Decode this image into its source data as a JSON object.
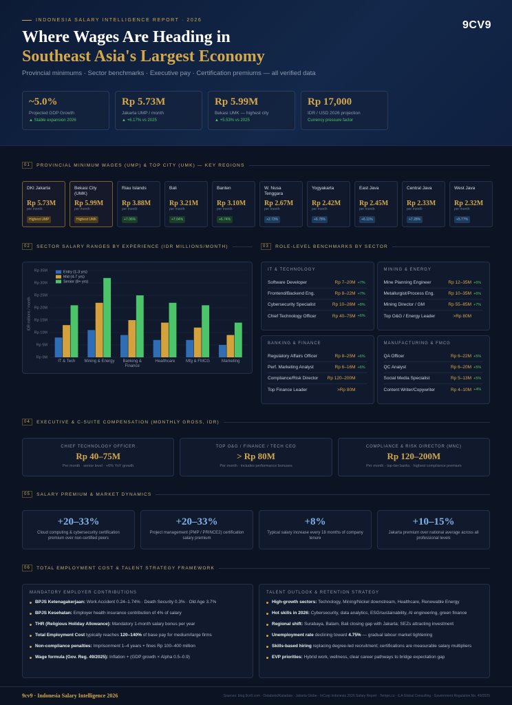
{
  "header": {
    "kicker": "INDONESIA SALARY INTELLIGENCE REPORT · 2026",
    "title_line1": "Where Wages Are Heading in",
    "title_line2": "Southeast Asia's Largest Economy",
    "subtitle": "Provincial minimums · Sector benchmarks · Executive pay · Certification premiums — all verified data",
    "logo": "9CV9"
  },
  "stats": [
    {
      "value": "~5.0%",
      "label": "Projected GDP Growth",
      "note": "▲ Stable expansion 2026"
    },
    {
      "value": "Rp 5.73M",
      "label": "Jakarta UMP / month",
      "note": "▲ +6.17% vs 2025"
    },
    {
      "value": "Rp 5.99M",
      "label": "Bekasi UMK — highest city",
      "note": "▲ +5.53% vs 2025"
    },
    {
      "value": "Rp 17,000",
      "label": "IDR / USD 2026 projection",
      "note": "Currency pressure factor"
    }
  ],
  "regions": {
    "number": "01",
    "title": "PROVINCIAL MINIMUM WAGES (UMP) & TOP CITY (UMK) — KEY REGIONS",
    "unit": "per month",
    "items": [
      {
        "name": "DKI Jakarta",
        "value": "Rp 5.73M",
        "badge": "Highest UMP"
      },
      {
        "name": "Bekasi City (UMK)",
        "value": "Rp 5.99M",
        "badge": "Highest UMK"
      },
      {
        "name": "Riau Islands",
        "value": "Rp 3.88M",
        "badge": "+7.06%"
      },
      {
        "name": "Bali",
        "value": "Rp 3.21M",
        "badge": "+7.04%"
      },
      {
        "name": "Banten",
        "value": "Rp 3.10M",
        "badge": "+6.74%"
      },
      {
        "name": "W. Nusa Tenggara",
        "value": "Rp 2.67M",
        "badge": "+2.73%"
      },
      {
        "name": "Yogyakarta",
        "value": "Rp 2.42M",
        "badge": "+6.78%"
      },
      {
        "name": "East Java",
        "value": "Rp 2.45M",
        "badge": "+6.11%"
      },
      {
        "name": "Central Java",
        "value": "Rp 2.33M",
        "badge": "+7.28%"
      },
      {
        "name": "West Java",
        "value": "Rp 2.32M",
        "badge": "+5.77%"
      }
    ]
  },
  "chart_section": {
    "number": "02",
    "title": "SECTOR SALARY RANGES BY EXPERIENCE (IDR MILLIONS/MONTH)"
  },
  "chart_data": {
    "type": "bar",
    "y_label": "IDR millions / month",
    "categories": [
      "IT & Tech",
      "Mining & Energy",
      "Banking & Finance",
      "Healthcare",
      "Mfg & FMCG",
      "Marketing"
    ],
    "series": [
      {
        "name": "Entry (1-3 yrs)",
        "color": "#2f6db5",
        "values": [
          8,
          11,
          9,
          7,
          7,
          5
        ]
      },
      {
        "name": "Mid (4-7 yrs)",
        "color": "#d4a23c",
        "values": [
          13,
          22,
          15,
          14,
          12,
          9
        ]
      },
      {
        "name": "Senior (8+ yrs)",
        "color": "#4cc46a",
        "values": [
          21,
          32,
          25,
          22,
          21,
          14
        ]
      }
    ],
    "ylim": [
      0,
      35
    ],
    "yticks": [
      {
        "value": 0,
        "label": "Rp 0M"
      },
      {
        "value": 5,
        "label": "Rp 5M"
      },
      {
        "value": 10,
        "label": "Rp 10M"
      },
      {
        "value": 15,
        "label": "Rp 15M"
      },
      {
        "value": 20,
        "label": "Rp 20M"
      },
      {
        "value": 25,
        "label": "Rp 25M"
      },
      {
        "value": 30,
        "label": "Rp 30M"
      },
      {
        "value": 35,
        "label": "Rp 35M"
      }
    ],
    "grid": true,
    "legend": "top-left"
  },
  "benchmarks": {
    "number": "03",
    "title": "ROLE-LEVEL BENCHMARKS BY SECTOR",
    "sectors": [
      {
        "name": "IT & TECHNOLOGY",
        "roles": [
          {
            "role": "Software Developer",
            "range": "Rp 7–20M",
            "growth": "+7%"
          },
          {
            "role": "Frontend/Backend Eng.",
            "range": "Rp 8–22M",
            "growth": "+7%"
          },
          {
            "role": "Cybersecurity Specialist",
            "range": "Rp 10–26M",
            "growth": "+8%"
          },
          {
            "role": "Chief Technology Officer",
            "range": "Rp 40–75M",
            "growth": "+6%"
          }
        ]
      },
      {
        "name": "MINING & ENERGY",
        "roles": [
          {
            "role": "Mine Planning Engineer",
            "range": "Rp 12–35M",
            "growth": "+6%"
          },
          {
            "role": "Metallurgist/Process Eng.",
            "range": "Rp 10–35M",
            "growth": "+6%"
          },
          {
            "role": "Mining Director / GM",
            "range": "Rp 55–85M",
            "growth": "+7%"
          },
          {
            "role": "Top O&G / Energy Leader",
            "range": ">Rp 80M"
          }
        ]
      },
      {
        "name": "BANKING & FINANCE",
        "roles": [
          {
            "role": "Regulatory Affairs Officer",
            "range": "Rp 8–25M",
            "growth": "+6%"
          },
          {
            "role": "Perf. Marketing Analyst",
            "range": "Rp 6–16M",
            "growth": "+6%"
          },
          {
            "role": "Compliance/Risk Director",
            "range": "Rp 120–200M"
          },
          {
            "role": "Top Finance Leader",
            "range": ">Rp 80M"
          }
        ]
      },
      {
        "name": "MANUFACTURING & FMCG",
        "roles": [
          {
            "role": "QA Officer",
            "range": "Rp 6–22M",
            "growth": "+5%"
          },
          {
            "role": "QC Analyst",
            "range": "Rp 6–20M",
            "growth": "+5%"
          },
          {
            "role": "Social Media Specialist",
            "range": "Rp 5–13M",
            "growth": "+5%"
          },
          {
            "role": "Content Writer/Copywriter",
            "range": "Rp 4–10M",
            "growth": "+4%"
          }
        ]
      }
    ]
  },
  "executive": {
    "number": "04",
    "title": "EXECUTIVE & C-SUITE COMPENSATION (MONTHLY GROSS, IDR)",
    "cards": [
      {
        "role": "CHIEF TECHNOLOGY OFFICER",
        "pay": "Rp 40–75M",
        "note": "Per month · senior level · +6% YoY growth"
      },
      {
        "role": "TOP O&G / FINANCE / TECH CEO",
        "pay": "> Rp 80M",
        "note": "Per month · includes performance bonuses"
      },
      {
        "role": "COMPLIANCE & RISK DIRECTOR (MNC)",
        "pay": "Rp 120–200M",
        "note": "Per month · top-tier banks · highest compliance premium"
      }
    ]
  },
  "premiums": {
    "number": "05",
    "title": "SALARY PREMIUM & MARKET DYNAMICS",
    "cards": [
      {
        "value": "+20–33%",
        "text": "Cloud computing & cybersecurity certification premium over non-certified peers"
      },
      {
        "value": "+20–33%",
        "text": "Project management (PMP / PRINCE2) certification salary premium"
      },
      {
        "value": "+8%",
        "text": "Typical salary increase every 18 months of company tenure"
      },
      {
        "value": "+10–15%",
        "text": "Jakarta premium over national average across all professional levels"
      }
    ]
  },
  "framework": {
    "number": "06",
    "title": "TOTAL EMPLOYMENT COST & TALENT STRATEGY FRAMEWORK",
    "panels": [
      {
        "title": "MANDATORY EMPLOYER CONTRIBUTIONS",
        "items": [
          [
            "BPJS Ketenagakerjaan:",
            " Work Accident 0.24–1.74% · Death Security 0.3% · Old Age 3.7%"
          ],
          [
            "BPJS Kesehatan:",
            " Employer health insurance contribution of 4% of salary"
          ],
          [
            "THR (Religious Holiday Allowance):",
            " Mandatory 1-month salary bonus per year"
          ],
          [
            "Total Employment Cost",
            " typically reaches ",
            "120–140%",
            " of base pay for medium/large firms"
          ],
          [
            "Non-compliance penalties:",
            " Imprisonment 1–4 years + fines Rp 100–400 million"
          ],
          [
            "Wage formula (Gov. Reg. 49/2025):",
            " Inflation + (GDP growth × Alpha 0.5–0.9)"
          ]
        ]
      },
      {
        "title": "TALENT OUTLOOK & RETENTION STRATEGY",
        "items": [
          [
            "High-growth sectors:",
            " Technology, Mining/Nickel downstream, Healthcare, Renewable Energy"
          ],
          [
            "Hot skills in 2026:",
            " Cybersecurity, data analytics, ESG/sustainability, AI engineering, green finance"
          ],
          [
            "Regional shift:",
            " Surabaya, Batam, Bali closing gap with Jakarta; SEZs attracting investment"
          ],
          [
            "Unemployment rate",
            " declining toward ",
            "4.75%",
            " — gradual labour market tightening"
          ],
          [
            "Skills-based hiring",
            " replacing degree-led recruitment; certifications are measurable salary multipliers"
          ],
          [
            "EVP priorities:",
            " Hybrid work, wellness, clear career pathways to bridge expectation gap"
          ]
        ]
      }
    ]
  },
  "footer": {
    "brand": "9cv9 · Indonesia Salary Intelligence 2026",
    "sources": "Sources: blog.9cv9.com · Databoks/Katadata · Jakarta Globe · InCorp Indonesia 2026 Salary Report · Tempo.co · ILA Global Consulting · Government Regulation No. 49/2025"
  }
}
